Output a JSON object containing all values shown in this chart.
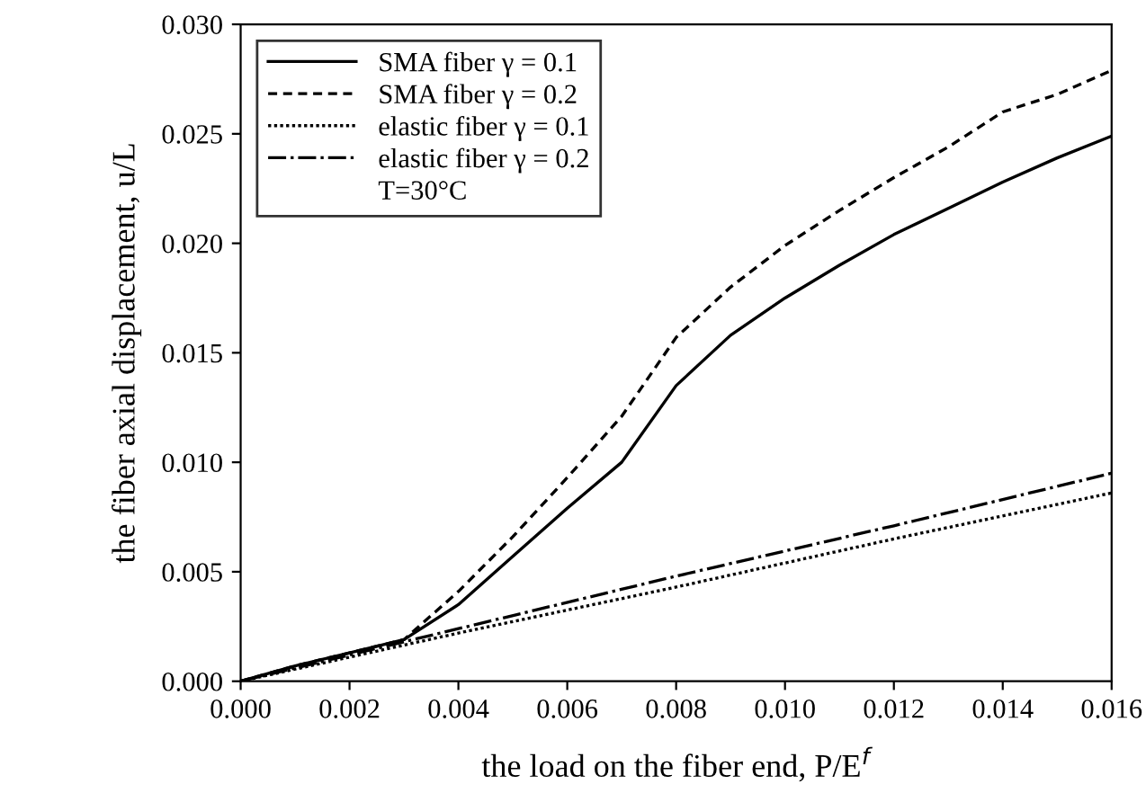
{
  "chart_data": {
    "type": "line",
    "xlabel": "the load on the fiber end, P/E$^{f}$",
    "ylabel": "the fiber axial displacement, u/L",
    "xlim": [
      0.0,
      0.016
    ],
    "ylim": [
      0.0,
      0.03
    ],
    "xticks": [
      {
        "value": 0.0,
        "label": "0.000"
      },
      {
        "value": 0.002,
        "label": "0.002"
      },
      {
        "value": 0.004,
        "label": "0.004"
      },
      {
        "value": 0.006,
        "label": "0.006"
      },
      {
        "value": 0.008,
        "label": "0.008"
      },
      {
        "value": 0.01,
        "label": "0.010"
      },
      {
        "value": 0.012,
        "label": "0.012"
      },
      {
        "value": 0.014,
        "label": "0.014"
      },
      {
        "value": 0.016,
        "label": "0.016"
      }
    ],
    "yticks": [
      {
        "value": 0.0,
        "label": "0.000"
      },
      {
        "value": 0.005,
        "label": "0.005"
      },
      {
        "value": 0.01,
        "label": "0.010"
      },
      {
        "value": 0.015,
        "label": "0.015"
      },
      {
        "value": 0.02,
        "label": "0.020"
      },
      {
        "value": 0.025,
        "label": "0.025"
      },
      {
        "value": 0.03,
        "label": "0.030"
      }
    ],
    "grid": false,
    "legend": "top left",
    "marker": "none",
    "annotations": [
      "T=30°C"
    ],
    "series": [
      {
        "name": "SMA fiber γ = 0.1",
        "color": "#000000",
        "line_style": "solid",
        "x": [
          0,
          0.001,
          0.002,
          0.003,
          0.004,
          0.005,
          0.006,
          0.007,
          0.008,
          0.009,
          0.01,
          0.011,
          0.012,
          0.013,
          0.014,
          0.015,
          0.016
        ],
        "values": [
          0,
          0.0007,
          0.0013,
          0.0019,
          0.0035,
          0.0057,
          0.0079,
          0.01,
          0.0135,
          0.0158,
          0.0175,
          0.019,
          0.0204,
          0.0216,
          0.0228,
          0.0239,
          0.0249
        ]
      },
      {
        "name": "SMA fiber γ = 0.2",
        "color": "#000000",
        "line_style": "dashed",
        "x": [
          0,
          0.001,
          0.002,
          0.003,
          0.004,
          0.005,
          0.006,
          0.007,
          0.008,
          0.009,
          0.01,
          0.011,
          0.012,
          0.013,
          0.014,
          0.015,
          0.016
        ],
        "values": [
          0,
          0.0007,
          0.0013,
          0.0019,
          0.0041,
          0.0066,
          0.0093,
          0.0121,
          0.0157,
          0.018,
          0.0199,
          0.0215,
          0.023,
          0.0244,
          0.026,
          0.0268,
          0.0279
        ]
      },
      {
        "name": "elastic fiber γ = 0.1",
        "color": "#000000",
        "line_style": "dotted",
        "x": [
          0,
          0.004,
          0.008,
          0.012,
          0.016
        ],
        "values": [
          0,
          0.0022,
          0.0043,
          0.0065,
          0.0086
        ]
      },
      {
        "name": "elastic fiber γ = 0.2",
        "color": "#000000",
        "line_style": "dashdot",
        "x": [
          0,
          0.004,
          0.008,
          0.012,
          0.016
        ],
        "values": [
          0,
          0.0024,
          0.0048,
          0.0071,
          0.0095
        ]
      }
    ]
  }
}
